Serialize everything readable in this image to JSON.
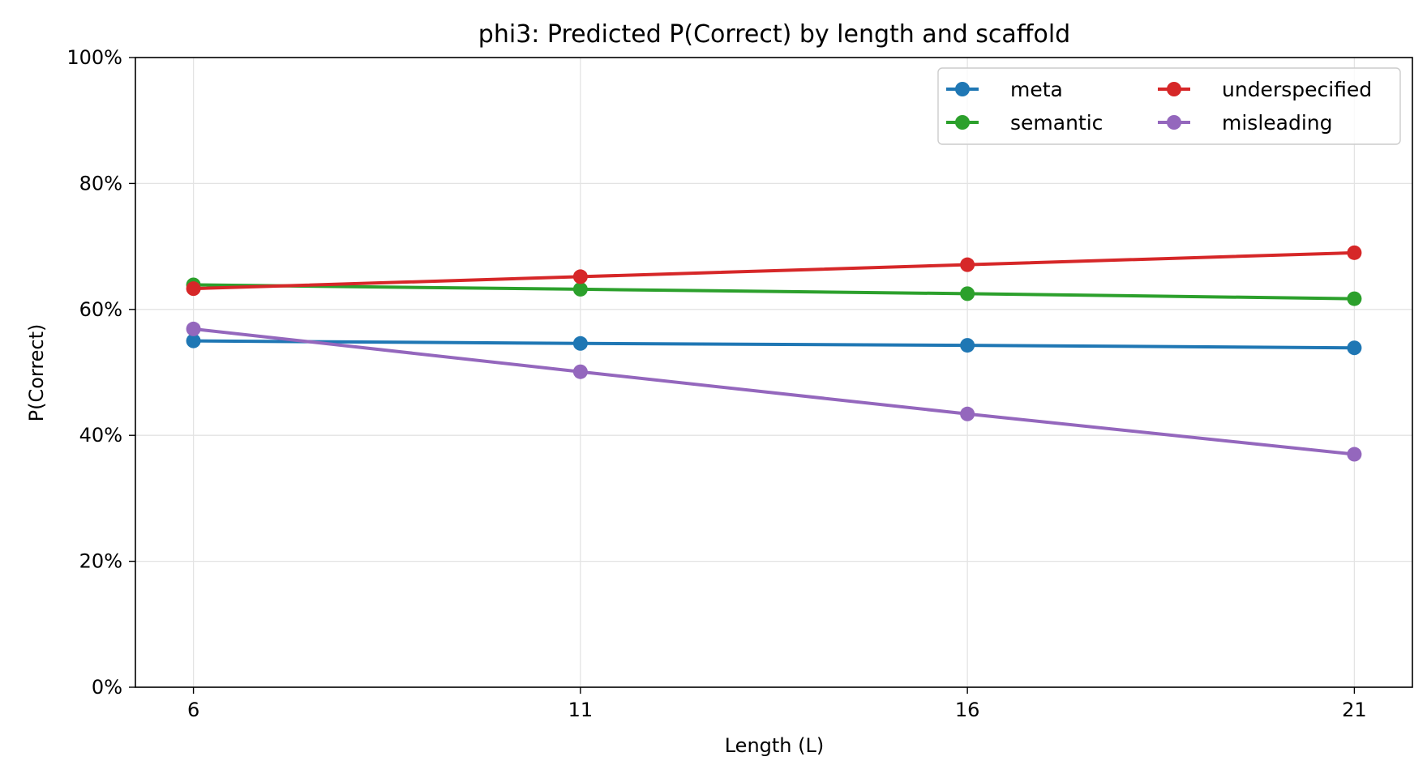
{
  "chart_data": {
    "type": "line",
    "title": "phi3: Predicted P(Correct) by length and scaffold",
    "xlabel": "Length (L)",
    "ylabel": "P(Correct)",
    "x": [
      6,
      11,
      16,
      21
    ],
    "x_tick_labels": [
      "6",
      "11",
      "16",
      "21"
    ],
    "xlim": [
      5.25,
      21.75
    ],
    "ylim": [
      0,
      1
    ],
    "y_ticks": [
      0,
      0.2,
      0.4,
      0.6,
      0.8,
      1.0
    ],
    "y_tick_labels": [
      "0%",
      "20%",
      "40%",
      "60%",
      "80%",
      "100%"
    ],
    "grid": true,
    "legend_position": "top-right",
    "legend_columns": 2,
    "series": [
      {
        "name": "meta",
        "color": "#1f77b4",
        "values": [
          0.55,
          0.546,
          0.543,
          0.539
        ]
      },
      {
        "name": "semantic",
        "color": "#2ca02c",
        "values": [
          0.639,
          0.632,
          0.625,
          0.617
        ]
      },
      {
        "name": "underspecified",
        "color": "#d62728",
        "values": [
          0.633,
          0.652,
          0.671,
          0.69
        ]
      },
      {
        "name": "misleading",
        "color": "#9467bd",
        "values": [
          0.569,
          0.501,
          0.434,
          0.37
        ]
      }
    ]
  }
}
